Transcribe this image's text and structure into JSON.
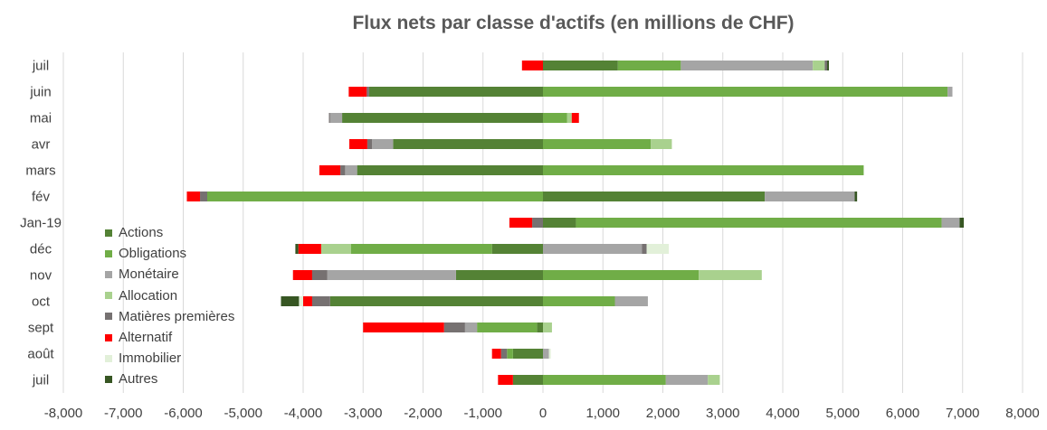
{
  "chart_data": {
    "type": "bar",
    "orientation": "horizontal",
    "stacked": true,
    "title": "Flux nets par classe d'actifs (en millions de CHF)",
    "xlabel": "",
    "ylabel": "",
    "xlim": [
      -8000,
      8000
    ],
    "xticks": [
      -8000,
      -7000,
      -6000,
      -5000,
      -4000,
      -3000,
      -2000,
      -1000,
      0,
      1000,
      2000,
      3000,
      4000,
      5000,
      6000,
      7000,
      8000
    ],
    "xtick_labels": [
      "-8,000",
      "-7,000",
      "-6,000",
      "-5,000",
      "-4,000",
      "-3,000",
      "-2,000",
      "-1,000",
      "0",
      "1,000",
      "2,000",
      "3,000",
      "4,000",
      "5,000",
      "6,000",
      "7,000",
      "8,000"
    ],
    "grid": "vertical",
    "legend_position": "left",
    "categories": [
      "juil",
      "juin",
      "mai",
      "avr",
      "mars",
      "fév",
      "Jan-19",
      "déc",
      "nov",
      "oct",
      "sept",
      "août",
      "juil"
    ],
    "series": [
      {
        "name": "Actions",
        "color": "#548235",
        "values": [
          1250,
          -2900,
          -3350,
          -2500,
          -3100,
          3700,
          550,
          -850,
          -1450,
          -3550,
          -100,
          -500,
          -500
        ]
      },
      {
        "name": "Obligations",
        "color": "#70ad47",
        "values": [
          1050,
          6750,
          400,
          1800,
          5350,
          -5600,
          6100,
          -2350,
          2600,
          1200,
          -1000,
          -100,
          2050
        ]
      },
      {
        "name": "Monétaire",
        "color": "#a5a5a5",
        "values": [
          2200,
          80,
          -200,
          -350,
          -200,
          1500,
          300,
          1650,
          -2150,
          550,
          -200,
          100,
          700
        ]
      },
      {
        "name": "Allocation",
        "color": "#a9d18e",
        "values": [
          200,
          0,
          80,
          350,
          0,
          0,
          0,
          -500,
          1050,
          0,
          150,
          0,
          200
        ]
      },
      {
        "name": "Matières premières",
        "color": "#767171",
        "values": [
          40,
          -40,
          -20,
          -80,
          -80,
          -120,
          -180,
          80,
          -250,
          -300,
          -350,
          -100,
          0
        ]
      },
      {
        "name": "Alternatif",
        "color": "#ff0000",
        "values": [
          -350,
          -300,
          120,
          -300,
          -350,
          -220,
          -380,
          -380,
          -320,
          -150,
          -1350,
          -150,
          -250
        ]
      },
      {
        "name": "Immobilier",
        "color": "#e2f0d9",
        "values": [
          0,
          0,
          0,
          0,
          0,
          0,
          0,
          370,
          0,
          -70,
          0,
          30,
          0
        ]
      },
      {
        "name": "Autres",
        "color": "#375623",
        "values": [
          30,
          0,
          0,
          0,
          0,
          40,
          70,
          -50,
          0,
          -300,
          0,
          0,
          0
        ]
      }
    ]
  }
}
